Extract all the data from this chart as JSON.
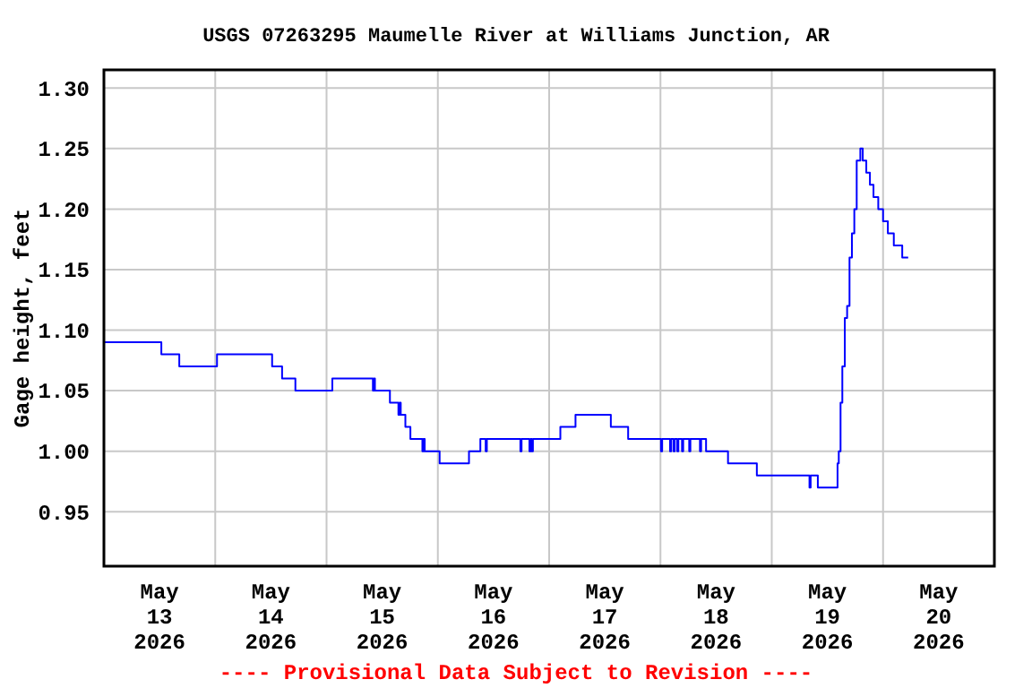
{
  "chart_data": {
    "type": "step",
    "title": "USGS 07263295 Maumelle River at Williams Junction, AR",
    "ylabel": "Gage height, feet",
    "annotations": [
      "---- Provisional Data Subject to Revision ----"
    ],
    "xlim": [
      "2026-05-13T00:00",
      "2026-05-21T00:00"
    ],
    "xticks": [
      {
        "value": "2026-05-13T12:00",
        "label": "May\n13\n2026"
      },
      {
        "value": "2026-05-14T00:00",
        "label": null
      },
      {
        "value": "2026-05-14T12:00",
        "label": "May\n14\n2026"
      },
      {
        "value": "2026-05-15T00:00",
        "label": null
      },
      {
        "value": "2026-05-15T12:00",
        "label": "May\n15\n2026"
      },
      {
        "value": "2026-05-16T00:00",
        "label": null
      },
      {
        "value": "2026-05-16T12:00",
        "label": "May\n16\n2026"
      },
      {
        "value": "2026-05-17T00:00",
        "label": null
      },
      {
        "value": "2026-05-17T12:00",
        "label": "May\n17\n2026"
      },
      {
        "value": "2026-05-18T00:00",
        "label": null
      },
      {
        "value": "2026-05-18T12:00",
        "label": "May\n18\n2026"
      },
      {
        "value": "2026-05-19T00:00",
        "label": null
      },
      {
        "value": "2026-05-19T12:00",
        "label": "May\n19\n2026"
      },
      {
        "value": "2026-05-20T00:00",
        "label": null
      },
      {
        "value": "2026-05-20T12:00",
        "label": "May\n20\n2026"
      }
    ],
    "ylim": [
      0.905,
      1.315
    ],
    "yticks": [
      0.95,
      {
        "value": 1.0,
        "label": "1.00"
      },
      1.05,
      {
        "value": 1.1,
        "label": "1.10"
      },
      1.15,
      {
        "value": 1.2,
        "label": "1.20"
      },
      1.25,
      {
        "value": 1.3,
        "label": "1.30"
      }
    ],
    "grid": true,
    "marker": "none",
    "line_style": "solid",
    "series": [
      {
        "color": "#0000ff",
        "x": [
          "2026-05-13T00:00",
          "2026-05-13T12:23",
          "2026-05-13T16:15",
          "2026-05-14T00:23",
          "2026-05-14T12:16",
          "2026-05-14T14:25",
          "2026-05-14T17:17",
          "2026-05-15T01:15",
          "2026-05-15T10:00",
          "2026-05-15T10:15",
          "2026-05-15T10:26",
          "2026-05-15T13:40",
          "2026-05-15T15:30",
          "2026-05-15T15:45",
          "2026-05-15T16:00",
          "2026-05-15T17:00",
          "2026-05-15T18:05",
          "2026-05-15T20:40",
          "2026-05-15T20:54",
          "2026-05-15T21:10",
          "2026-05-16T00:23",
          "2026-05-16T06:43",
          "2026-05-16T09:10",
          "2026-05-16T10:19",
          "2026-05-16T10:34",
          "2026-05-16T17:48",
          "2026-05-16T18:03",
          "2026-05-16T19:45",
          "2026-05-16T20:00",
          "2026-05-16T20:15",
          "2026-05-16T20:30",
          "2026-05-17T02:25",
          "2026-05-17T05:41",
          "2026-05-17T13:18",
          "2026-05-17T17:02",
          "2026-05-18T00:07",
          "2026-05-18T00:22",
          "2026-05-18T02:04",
          "2026-05-18T02:19",
          "2026-05-18T02:50",
          "2026-05-18T03:05",
          "2026-05-18T03:37",
          "2026-05-18T03:52",
          "2026-05-18T04:39",
          "2026-05-18T04:54",
          "2026-05-18T06:12",
          "2026-05-18T06:27",
          "2026-05-18T08:31",
          "2026-05-18T08:46",
          "2026-05-18T09:50",
          "2026-05-18T14:34",
          "2026-05-18T20:47",
          "2026-05-19T08:08",
          "2026-05-19T08:23",
          "2026-05-19T09:56",
          "2026-05-19T14:11",
          "2026-05-19T14:27",
          "2026-05-19T14:50",
          "2026-05-19T15:13",
          "2026-05-19T15:45",
          "2026-05-19T16:15",
          "2026-05-19T16:46",
          "2026-05-19T17:17",
          "2026-05-19T17:48",
          "2026-05-19T18:19",
          "2026-05-19T19:06",
          "2026-05-19T19:37",
          "2026-05-19T20:23",
          "2026-05-19T21:10",
          "2026-05-19T21:56",
          "2026-05-19T22:58",
          "2026-05-20T00:00",
          "2026-05-20T01:02",
          "2026-05-20T02:19",
          "2026-05-20T04:08",
          "2026-05-20T05:25"
        ],
        "values": [
          1.09,
          1.08,
          1.07,
          1.08,
          1.07,
          1.06,
          1.05,
          1.06,
          1.05,
          1.06,
          1.05,
          1.04,
          1.03,
          1.04,
          1.03,
          1.02,
          1.01,
          1.0,
          1.01,
          1.0,
          0.99,
          1.0,
          1.01,
          1.0,
          1.01,
          1.0,
          1.01,
          1.0,
          1.01,
          1.0,
          1.01,
          1.02,
          1.03,
          1.02,
          1.01,
          1.0,
          1.01,
          1.0,
          1.01,
          1.0,
          1.01,
          1.0,
          1.01,
          1.0,
          1.01,
          1.0,
          1.01,
          1.0,
          1.01,
          1.0,
          0.99,
          0.98,
          0.97,
          0.98,
          0.97,
          0.99,
          1.0,
          1.04,
          1.07,
          1.11,
          1.12,
          1.16,
          1.18,
          1.2,
          1.24,
          1.25,
          1.24,
          1.23,
          1.22,
          1.21,
          1.2,
          1.19,
          1.18,
          1.17,
          1.16,
          1.16
        ]
      }
    ]
  }
}
